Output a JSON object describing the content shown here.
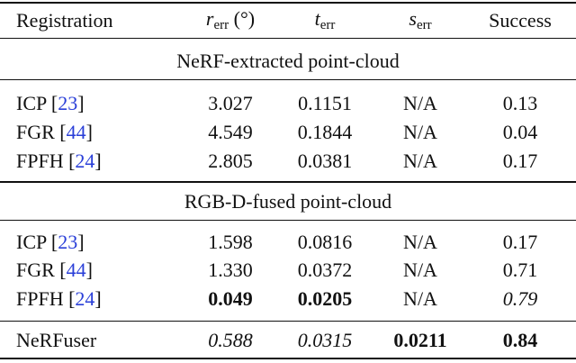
{
  "header": [
    [
      {
        "text": "Registration"
      }
    ],
    [
      {
        "text": "r",
        "style": "italic"
      },
      {
        "text": "err",
        "style": "sub"
      },
      {
        "text": " (°)"
      }
    ],
    [
      {
        "text": "t",
        "style": "italic"
      },
      {
        "text": "err",
        "style": "sub"
      }
    ],
    [
      {
        "text": "s",
        "style": "italic"
      },
      {
        "text": "err",
        "style": "sub"
      }
    ],
    [
      {
        "text": "Success"
      }
    ]
  ],
  "sections": [
    {
      "title": "NeRF-extracted point-cloud",
      "rows": [
        [
          [
            {
              "text": "ICP ["
            },
            {
              "text": "23",
              "style": "link"
            },
            {
              "text": "]"
            }
          ],
          [
            {
              "text": "3.027"
            }
          ],
          [
            {
              "text": "0.1151"
            }
          ],
          [
            {
              "text": "N/A"
            }
          ],
          [
            {
              "text": "0.13"
            }
          ]
        ],
        [
          [
            {
              "text": "FGR ["
            },
            {
              "text": "44",
              "style": "link"
            },
            {
              "text": "]"
            }
          ],
          [
            {
              "text": "4.549"
            }
          ],
          [
            {
              "text": "0.1844"
            }
          ],
          [
            {
              "text": "N/A"
            }
          ],
          [
            {
              "text": "0.04"
            }
          ]
        ],
        [
          [
            {
              "text": "FPFH ["
            },
            {
              "text": "24",
              "style": "link"
            },
            {
              "text": "]"
            }
          ],
          [
            {
              "text": "2.805"
            }
          ],
          [
            {
              "text": "0.0381"
            }
          ],
          [
            {
              "text": "N/A"
            }
          ],
          [
            {
              "text": "0.17"
            }
          ]
        ]
      ]
    },
    {
      "title": "RGB-D-fused point-cloud",
      "rows": [
        [
          [
            {
              "text": "ICP ["
            },
            {
              "text": "23",
              "style": "link"
            },
            {
              "text": "]"
            }
          ],
          [
            {
              "text": "1.598"
            }
          ],
          [
            {
              "text": "0.0816"
            }
          ],
          [
            {
              "text": "N/A"
            }
          ],
          [
            {
              "text": "0.17"
            }
          ]
        ],
        [
          [
            {
              "text": "FGR ["
            },
            {
              "text": "44",
              "style": "link"
            },
            {
              "text": "]"
            }
          ],
          [
            {
              "text": "1.330"
            }
          ],
          [
            {
              "text": "0.0372"
            }
          ],
          [
            {
              "text": "N/A"
            }
          ],
          [
            {
              "text": "0.71"
            }
          ]
        ],
        [
          [
            {
              "text": "FPFH ["
            },
            {
              "text": "24",
              "style": "link"
            },
            {
              "text": "]"
            }
          ],
          [
            {
              "text": "0.049",
              "style": "bold"
            }
          ],
          [
            {
              "text": "0.0205",
              "style": "bold"
            }
          ],
          [
            {
              "text": "N/A"
            }
          ],
          [
            {
              "text": "0.79",
              "style": "italic"
            }
          ]
        ]
      ]
    }
  ],
  "final_row": [
    [
      {
        "text": "NeRFuser"
      }
    ],
    [
      {
        "text": "0.588",
        "style": "italic"
      }
    ],
    [
      {
        "text": "0.0315",
        "style": "italic"
      }
    ],
    [
      {
        "text": "0.0211",
        "style": "bold"
      }
    ],
    [
      {
        "text": "0.84",
        "style": "bold"
      }
    ]
  ]
}
